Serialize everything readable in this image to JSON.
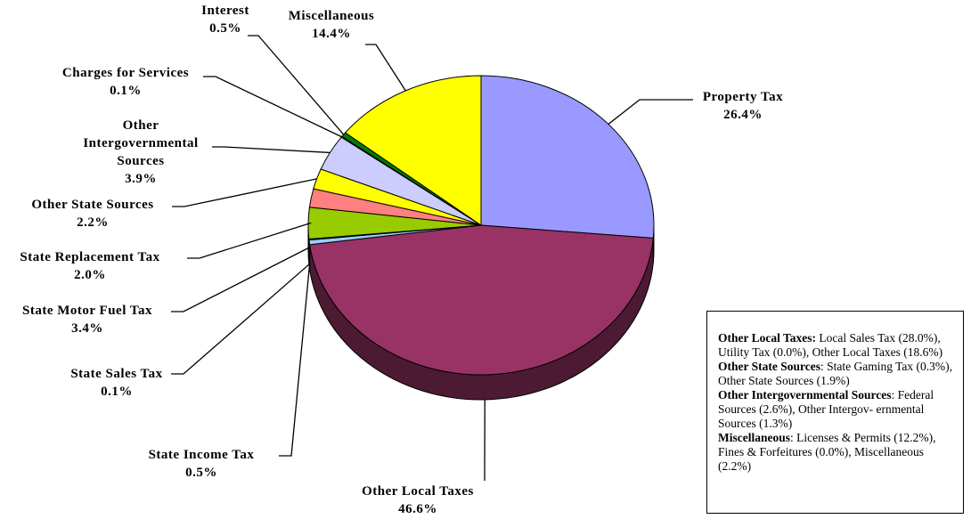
{
  "chart_data": {
    "type": "pie",
    "slices": [
      {
        "label": "Property Tax",
        "pct_text": "26.4%",
        "value": 26.4,
        "color": "#9999ff"
      },
      {
        "label": "Other Local Taxes",
        "pct_text": "46.6%",
        "value": 46.6,
        "color": "#993366"
      },
      {
        "label": "State Income Tax",
        "pct_text": "0.5%",
        "value": 0.5,
        "color": "#99ccff"
      },
      {
        "label": "State Sales Tax",
        "pct_text": "0.1%",
        "value": 0.1,
        "color": "#00cccc"
      },
      {
        "label": "State Motor Fuel Tax",
        "pct_text": "3.4%",
        "value": 3.4,
        "color": "#99cc00"
      },
      {
        "label": "State Replacement Tax",
        "pct_text": "2.0%",
        "value": 2.0,
        "color": "#ff8080"
      },
      {
        "label": "Other State Sources",
        "pct_text": "2.2%",
        "value": 2.2,
        "color": "#ffff00"
      },
      {
        "label": "Other Intergovernmental Sources",
        "pct_text": "3.9%",
        "value": 3.9,
        "color": "#ccccff"
      },
      {
        "label": "Charges for Services",
        "pct_text": "0.1%",
        "value": 0.1,
        "color": "#ffffcc"
      },
      {
        "label": "Interest",
        "pct_text": "0.5%",
        "value": 0.5,
        "color": "#008000"
      },
      {
        "label": "Miscellaneous",
        "pct_text": "14.4%",
        "value": 14.4,
        "color": "#ffff00"
      }
    ],
    "side_color": "#4d1a33",
    "label_lines": {
      "Property Tax": [
        "Property Tax"
      ],
      "Other Local Taxes": [
        "Other Local Taxes"
      ],
      "State Income Tax": [
        "State Income Tax"
      ],
      "State Sales Tax": [
        "State Sales Tax"
      ],
      "State Motor Fuel Tax": [
        "State Motor Fuel Tax"
      ],
      "State Replacement Tax": [
        "State Replacement Tax"
      ],
      "Other State Sources": [
        "Other State Sources"
      ],
      "Other Intergovernmental Sources": [
        "Other",
        "Intergovernmental",
        "Sources"
      ],
      "Charges for Services": [
        "Charges for Services"
      ],
      "Interest": [
        "Interest"
      ],
      "Miscellaneous": [
        "Miscellaneous"
      ]
    }
  },
  "legend_notes": [
    {
      "title": "Other Local Taxes:",
      "text": " Local Sales Tax (28.0%), Utility Tax (0.0%), Other Local Taxes (18.6%)"
    },
    {
      "title": "Other State Sources",
      "text": ": State Gaming Tax (0.3%), Other State Sources (1.9%)"
    },
    {
      "title": "Other Intergovernmental Sources",
      "text": ": Federal Sources (2.6%), Other Intergov- ernmental Sources (1.3%)"
    },
    {
      "title": "Miscellaneous",
      "text": ":  Licenses & Permits (12.2%), Fines & Forfeitures (0.0%), Miscellaneous (2.2%)"
    }
  ]
}
